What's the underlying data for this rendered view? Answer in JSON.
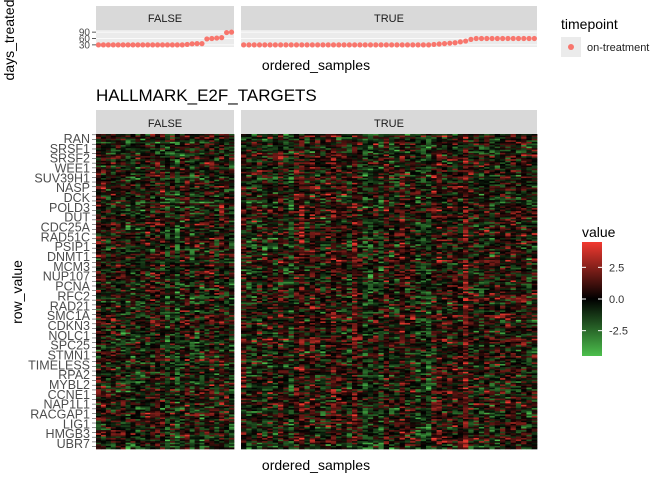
{
  "chart_data": [
    {
      "type": "scatter",
      "ylabel": "days_treated",
      "xlabel": "ordered_samples",
      "yticks": [
        30,
        60,
        90
      ],
      "ylim": [
        20,
        100
      ],
      "facets": [
        {
          "label": "FALSE",
          "values": [
            30,
            30,
            30,
            30,
            30,
            30,
            30,
            30,
            30,
            30,
            30,
            30,
            30,
            30,
            30,
            30,
            30,
            30,
            32,
            35,
            36,
            36,
            58,
            60,
            62,
            64,
            88,
            90
          ]
        },
        {
          "label": "TRUE",
          "values": [
            30,
            30,
            30,
            30,
            30,
            30,
            30,
            30,
            30,
            30,
            30,
            30,
            30,
            30,
            30,
            30,
            30,
            30,
            30,
            30,
            30,
            30,
            30,
            30,
            30,
            30,
            30,
            30,
            30,
            30,
            30,
            30,
            30,
            30,
            30,
            30,
            32,
            34,
            36,
            38,
            40,
            44,
            48,
            56,
            60,
            60,
            60,
            60,
            60,
            60,
            60,
            60,
            60,
            60,
            60,
            60
          ]
        }
      ],
      "legend": {
        "title": "timepoint",
        "entries": [
          {
            "label": "on-treatment",
            "color": "#F8766D"
          }
        ],
        "placement": "right"
      }
    },
    {
      "type": "heatmap",
      "title": "HALLMARK_E2F_TARGETS",
      "xlabel": "ordered_samples",
      "ylabel": "row_value",
      "facets": [
        {
          "label": "FALSE",
          "columns": 28
        },
        {
          "label": "TRUE",
          "columns": 56
        }
      ],
      "rows": 200,
      "color_scale": {
        "title": "value",
        "low": "#4CBF4C",
        "mid": "#000000",
        "high": "#F23A30",
        "range": [
          -4.5,
          4.5
        ],
        "ticks": [
          "2.5",
          "0.0",
          "-2.5"
        ],
        "tick_values": [
          2.5,
          0.0,
          -2.5
        ]
      },
      "row_labels": [
        "RAN",
        "SRSF1",
        "SRSF2",
        "WEE1",
        "SUV39H1",
        "NASP",
        "DCK",
        "POLD3",
        "DUT",
        "CDC25A",
        "RAD51C",
        "PSIP1",
        "DNMT1",
        "MCM3",
        "NUP107",
        "PCNA",
        "RFC2",
        "RAD21",
        "SMC1A",
        "CDKN3",
        "NOLC1",
        "SPC25",
        "STMN1",
        "TIMELESS",
        "RPA2",
        "MYBL2",
        "CCNE1",
        "NAP1L1",
        "RACGAP1",
        "LIG1",
        "HMGB3",
        "UBR7"
      ]
    }
  ]
}
